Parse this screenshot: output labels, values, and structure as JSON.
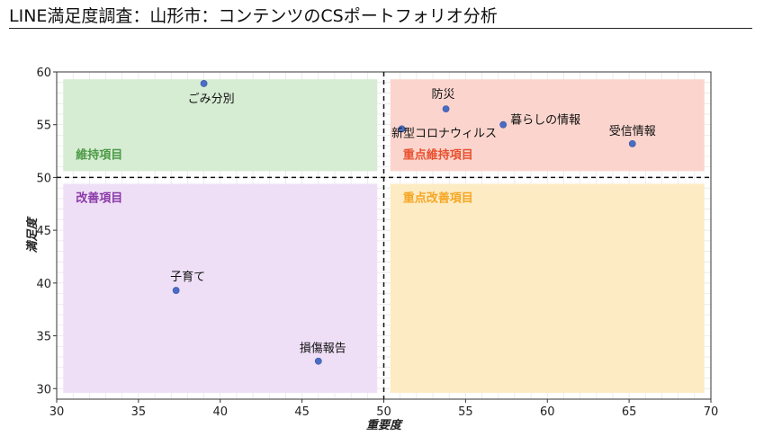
{
  "title": "LINE満足度調査：山形市：コンテンツのCSポートフォリオ分析",
  "chart_data": {
    "type": "scatter",
    "title": "LINE満足度調査：山形市：コンテンツのCSポートフォリオ分析",
    "xlabel": "重要度",
    "ylabel": "満足度",
    "xlim": [
      30,
      70
    ],
    "ylim": [
      29,
      60
    ],
    "xticks": [
      30,
      35,
      40,
      45,
      50,
      55,
      60,
      65,
      70
    ],
    "yticks": [
      30,
      35,
      40,
      45,
      50,
      55,
      60
    ],
    "grid": true,
    "reference_lines": {
      "x": 50,
      "y": 50
    },
    "quadrants": [
      {
        "label": "維持項目",
        "x0": 30.4,
        "x1": 49.6,
        "y0": 50.6,
        "y1": 59.3,
        "fill": "#d6ecd3",
        "text_color": "#4c9a45"
      },
      {
        "label": "重点維持項目",
        "x0": 50.4,
        "x1": 69.6,
        "y0": 50.6,
        "y1": 59.3,
        "fill": "#fbd5cd",
        "text_color": "#e8502e"
      },
      {
        "label": "改善項目",
        "x0": 30.4,
        "x1": 49.6,
        "y0": 29.6,
        "y1": 49.4,
        "fill": "#efdff6",
        "text_color": "#8a3aa8"
      },
      {
        "label": "重点改善項目",
        "x0": 50.4,
        "x1": 69.6,
        "y0": 29.6,
        "y1": 49.4,
        "fill": "#fdebc3",
        "text_color": "#f5a623"
      }
    ],
    "points": [
      {
        "name": "ごみ分別",
        "x": 39.0,
        "y": 58.9
      },
      {
        "name": "防災",
        "x": 53.8,
        "y": 56.5
      },
      {
        "name": "暮らしの情報",
        "x": 57.3,
        "y": 55.0
      },
      {
        "name": "新型コロナウィルス",
        "x": 51.1,
        "y": 54.6
      },
      {
        "name": "受信情報",
        "x": 65.2,
        "y": 53.2
      },
      {
        "name": "子育て",
        "x": 37.3,
        "y": 39.3
      },
      {
        "name": "損傷報告",
        "x": 46.0,
        "y": 32.6
      }
    ],
    "point_color": "#4a6cc3"
  }
}
